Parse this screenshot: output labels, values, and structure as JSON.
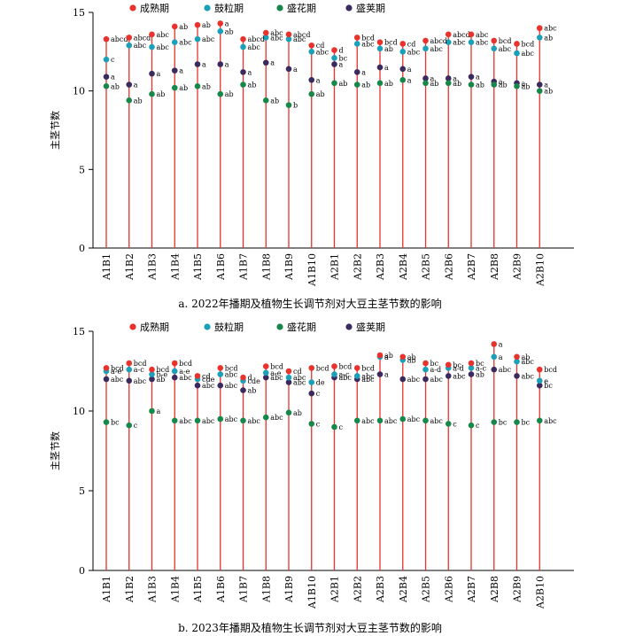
{
  "colors": {
    "mature": "#e8322b",
    "grain": "#1aa0b8",
    "flower": "#16884a",
    "pod": "#3b2a5e",
    "stem": "#e8322b"
  },
  "chart_data": [
    {
      "type": "scatter",
      "ylabel": "主茎节数",
      "caption": "a. 2022年播期及植物生长调节剂对大豆主茎节数的影响",
      "ylim": [
        0,
        15
      ],
      "yticks": [
        0,
        5,
        10,
        15
      ],
      "legend_position": "top-left",
      "categories": [
        "A1B1",
        "A1B2",
        "A1B3",
        "A1B4",
        "A1B5",
        "A1B6",
        "A1B7",
        "A1B8",
        "A1B9",
        "A1B10",
        "A2B1",
        "A2B2",
        "A2B3",
        "A2B4",
        "A2B5",
        "A2B6",
        "A2B7",
        "A2B8",
        "A2B9",
        "A2B10"
      ],
      "series": [
        {
          "name": "成熟期",
          "color_key": "mature",
          "values": [
            13.3,
            13.4,
            13.6,
            14.1,
            14.2,
            14.3,
            13.3,
            13.7,
            13.6,
            12.9,
            12.6,
            13.4,
            13.1,
            13.0,
            13.2,
            13.6,
            13.6,
            13.2,
            13.0,
            14.0
          ],
          "labels": [
            "abcd",
            "abcd",
            "abc",
            "ab",
            "ab",
            "a",
            "abcd",
            "abc",
            "abcd",
            "cd",
            "d",
            "bcd",
            "bcd",
            "cd",
            "abcd",
            "abcd",
            "abc",
            "bcd",
            "bcd",
            "abc"
          ]
        },
        {
          "name": "鼓粒期",
          "color_key": "grain",
          "values": [
            12.0,
            12.9,
            12.8,
            13.1,
            13.3,
            13.8,
            12.8,
            13.4,
            13.3,
            12.5,
            12.1,
            13.0,
            12.7,
            12.5,
            12.7,
            13.1,
            13.1,
            12.7,
            12.4,
            13.4
          ],
          "labels": [
            "c",
            "abc",
            "abc",
            "abc",
            "abc",
            "ab",
            "abc",
            "abc",
            "abc",
            "abc",
            "bc",
            "abc",
            "ab",
            "abc",
            "abc",
            "abc",
            "abc",
            "abc",
            "abc",
            "ab"
          ]
        },
        {
          "name": "盛花期",
          "color_key": "flower",
          "values": [
            10.3,
            9.4,
            9.8,
            10.2,
            10.3,
            9.8,
            10.4,
            9.4,
            9.1,
            9.8,
            10.5,
            10.4,
            10.5,
            10.7,
            10.5,
            10.5,
            10.4,
            10.4,
            10.3,
            10.0
          ],
          "labels": [
            "ab",
            "ab",
            "ab",
            "ab",
            "ab",
            "ab",
            "ab",
            "ab",
            "b",
            "ab",
            "ab",
            "ab",
            "ab",
            "a",
            "ab",
            "ab",
            "ab",
            "ab",
            "ab",
            "ab"
          ]
        },
        {
          "name": "盛荚期",
          "color_key": "pod",
          "values": [
            10.9,
            10.4,
            11.1,
            11.3,
            11.7,
            11.7,
            11.2,
            11.8,
            11.4,
            10.7,
            11.7,
            11.2,
            11.5,
            11.4,
            10.8,
            10.8,
            10.9,
            10.6,
            10.5,
            10.4
          ],
          "labels": [
            "a",
            "a",
            "a",
            "a",
            "a",
            "a",
            "a",
            "a",
            "a",
            "a",
            "a",
            "a",
            "a",
            "a",
            "a",
            "a",
            "a",
            "a",
            "a",
            "a"
          ]
        }
      ]
    },
    {
      "type": "scatter",
      "ylabel": "主茎节数",
      "caption": "b. 2023年播期及植物生长调节剂对大豆主茎节数的影响",
      "ylim": [
        0,
        15
      ],
      "yticks": [
        0,
        5,
        10,
        15
      ],
      "legend_position": "top-left",
      "categories": [
        "A1B1",
        "A1B2",
        "A1B3",
        "A1B4",
        "A1B5",
        "A1B6",
        "A1B7",
        "A1B8",
        "A1B9",
        "A1B10",
        "A2B1",
        "A2B2",
        "A2B3",
        "A2B4",
        "A2B5",
        "A2B6",
        "A2B7",
        "A2B8",
        "A2B9",
        "A2B10"
      ],
      "series": [
        {
          "name": "成熟期",
          "color_key": "mature",
          "values": [
            12.7,
            13.0,
            12.6,
            13.0,
            12.2,
            12.7,
            12.1,
            12.8,
            12.5,
            12.7,
            12.8,
            12.7,
            13.5,
            13.4,
            13.0,
            12.9,
            13.0,
            14.2,
            13.4,
            12.6
          ],
          "labels": [
            "bcd",
            "bcd",
            "bcd",
            "bcd",
            "cd",
            "bcd",
            "d",
            "bcd",
            "cd",
            "bcd",
            "bcd",
            "bcd",
            "ab",
            "ab",
            "bc",
            "bc",
            "bc",
            "a",
            "ab",
            "bcd"
          ]
        },
        {
          "name": "鼓粒期",
          "color_key": "grain",
          "values": [
            12.5,
            12.6,
            12.3,
            12.5,
            12.0,
            12.3,
            11.9,
            12.4,
            12.1,
            11.8,
            12.3,
            12.2,
            13.4,
            13.2,
            12.6,
            12.7,
            12.7,
            13.4,
            13.1,
            11.9
          ],
          "labels": [
            "a-e",
            "a-c",
            "b-e",
            "a-e",
            "cde",
            "abc",
            "cde",
            "a-e",
            "abc",
            "de",
            "a-c",
            "abc",
            "a",
            "ab",
            "a-d",
            "a-d",
            "a-c",
            "a",
            "abc",
            "e"
          ]
        },
        {
          "name": "盛花期",
          "color_key": "flower",
          "values": [
            9.3,
            9.1,
            10.0,
            9.4,
            9.4,
            9.5,
            9.4,
            9.6,
            9.9,
            9.2,
            9.0,
            9.4,
            9.4,
            9.5,
            9.4,
            9.2,
            9.1,
            9.3,
            9.3,
            9.4
          ],
          "labels": [
            "bc",
            "c",
            "a",
            "abc",
            "abc",
            "abc",
            "abc",
            "abc",
            "ab",
            "c",
            "c",
            "abc",
            "abc",
            "abc",
            "abc",
            "c",
            "c",
            "bc",
            "bc",
            "abc"
          ]
        },
        {
          "name": "盛荚期",
          "color_key": "pod",
          "values": [
            12.0,
            11.9,
            12.0,
            12.1,
            11.6,
            11.6,
            11.3,
            12.1,
            11.8,
            11.1,
            12.1,
            12.0,
            12.3,
            12.0,
            12.0,
            12.2,
            12.3,
            12.6,
            12.2,
            11.6
          ],
          "labels": [
            "abc",
            "abc",
            "ab",
            "abc",
            "abc",
            "abc",
            "ab",
            "abc",
            "abc",
            "c",
            "abc",
            "abc",
            "a",
            "abc",
            "abc",
            "abc",
            "ab",
            "abc",
            "abc",
            "bc"
          ]
        }
      ]
    }
  ]
}
